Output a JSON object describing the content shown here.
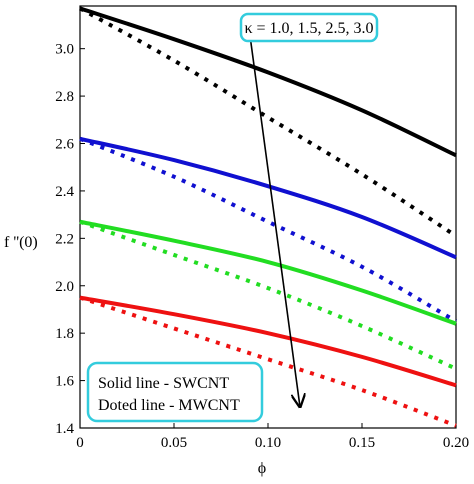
{
  "chart_data": {
    "type": "line",
    "xlabel": "ϕ",
    "ylabel": "f ''(0)",
    "xlim": [
      0,
      0.2
    ],
    "ylim": [
      1.4,
      3.18
    ],
    "x_ticks": [
      "0",
      "0.05",
      "0.10",
      "0.15",
      "0.20"
    ],
    "y_ticks": [
      "1.4",
      "1.6",
      "1.8",
      "2.0",
      "2.2",
      "2.4",
      "2.6",
      "2.8",
      "3.0"
    ],
    "x_tick_values": [
      0,
      0.05,
      0.1,
      0.15,
      0.2
    ],
    "y_tick_values": [
      1.4,
      1.6,
      1.8,
      2.0,
      2.2,
      2.4,
      2.6,
      2.8,
      3.0
    ],
    "grid": false,
    "x": [
      0,
      0.05,
      0.1,
      0.15,
      0.2
    ],
    "series": [
      {
        "color": "#000000",
        "style": "solid",
        "values": [
          3.17,
          3.04,
          2.9,
          2.74,
          2.55
        ]
      },
      {
        "color": "#000000",
        "style": "dotted",
        "values": [
          3.17,
          2.95,
          2.71,
          2.47,
          2.21
        ]
      },
      {
        "color": "#1010d0",
        "style": "solid",
        "values": [
          2.62,
          2.53,
          2.42,
          2.29,
          2.12
        ]
      },
      {
        "color": "#1010d0",
        "style": "dotted",
        "values": [
          2.62,
          2.46,
          2.27,
          2.08,
          1.85
        ]
      },
      {
        "color": "#22dd22",
        "style": "solid",
        "values": [
          2.27,
          2.19,
          2.1,
          1.98,
          1.84
        ]
      },
      {
        "color": "#22dd22",
        "style": "dotted",
        "values": [
          2.27,
          2.13,
          1.99,
          1.83,
          1.65
        ]
      },
      {
        "color": "#ee1111",
        "style": "solid",
        "values": [
          1.95,
          1.88,
          1.8,
          1.7,
          1.58
        ]
      },
      {
        "color": "#ee1111",
        "style": "dotted",
        "values": [
          1.95,
          1.82,
          1.69,
          1.56,
          1.41
        ]
      }
    ],
    "annotations": {
      "kappa": "κ = 1.0, 1.5, 2.5, 3.0",
      "legend_solid": "Solid line - SWCNT",
      "legend_dotted": "Doted line - MWCNT"
    },
    "arrow": {
      "from": [
        0.09,
        3.08
      ],
      "to": [
        0.117,
        1.49
      ]
    },
    "box_color": "#33ccdd"
  }
}
